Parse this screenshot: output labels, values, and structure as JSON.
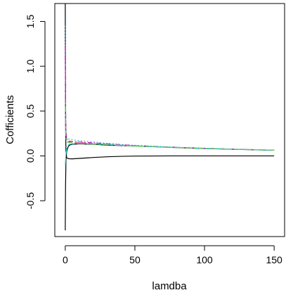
{
  "chart_data": {
    "type": "line",
    "title": "",
    "xlabel": "lamdba",
    "ylabel": "Cofficients",
    "xlim": [
      -7.5,
      157.5
    ],
    "ylim": [
      -0.9,
      1.7
    ],
    "x_ticks": [
      0,
      50,
      100,
      150
    ],
    "y_ticks": [
      -0.5,
      0.0,
      0.5,
      1.0,
      1.5
    ],
    "x_tick_labels": [
      "0",
      "50",
      "100",
      "150"
    ],
    "y_tick_labels": [
      "-0.5",
      "0.0",
      "0.5",
      "1.0",
      "1.5"
    ],
    "grid": false,
    "legend": "none",
    "x": [
      0,
      0.2,
      0.5,
      1,
      2,
      3,
      5,
      10,
      20,
      30,
      40,
      50,
      75,
      100,
      125,
      150
    ],
    "series": [
      {
        "color": "#000000",
        "dash": "solid",
        "values": [
          1.72,
          0.4,
          0.05,
          -0.02,
          -0.03,
          -0.032,
          -0.033,
          -0.028,
          -0.018,
          -0.01,
          -0.005,
          -0.002,
          0.0,
          0.0,
          0.0,
          0.0
        ]
      },
      {
        "color": "#000000",
        "dash": "solid",
        "values": [
          -0.83,
          -0.35,
          -0.05,
          0.05,
          0.1,
          0.12,
          0.13,
          0.135,
          0.13,
          0.12,
          0.115,
          0.11,
          0.095,
          0.082,
          0.072,
          0.063
        ]
      },
      {
        "color": "#DF536B",
        "dash": "dashed",
        "values": [
          1.1,
          0.55,
          0.25,
          0.18,
          0.16,
          0.155,
          0.155,
          0.15,
          0.14,
          0.13,
          0.12,
          0.112,
          0.097,
          0.084,
          0.073,
          0.064
        ]
      },
      {
        "color": "#2297E6",
        "dash": "dotted",
        "values": [
          1.45,
          0.7,
          0.3,
          0.2,
          0.19,
          0.185,
          0.18,
          0.17,
          0.155,
          0.14,
          0.128,
          0.118,
          0.1,
          0.086,
          0.074,
          0.065
        ]
      },
      {
        "color": "#CD0BBC",
        "dash": "dotdash",
        "values": [
          1.25,
          0.6,
          0.28,
          0.19,
          0.17,
          0.165,
          0.16,
          0.155,
          0.145,
          0.135,
          0.125,
          0.115,
          0.098,
          0.085,
          0.073,
          0.064
        ]
      },
      {
        "color": "#28E2E5",
        "dash": "longdash",
        "values": [
          -0.1,
          -0.05,
          0.02,
          0.08,
          0.12,
          0.13,
          0.135,
          0.14,
          0.135,
          0.128,
          0.12,
          0.112,
          0.097,
          0.084,
          0.073,
          0.064
        ]
      },
      {
        "color": "#61D04F",
        "dash": "twodash",
        "values": [
          0.6,
          0.35,
          0.2,
          0.16,
          0.15,
          0.148,
          0.145,
          0.14,
          0.132,
          0.124,
          0.117,
          0.11,
          0.096,
          0.083,
          0.072,
          0.063
        ]
      }
    ]
  }
}
